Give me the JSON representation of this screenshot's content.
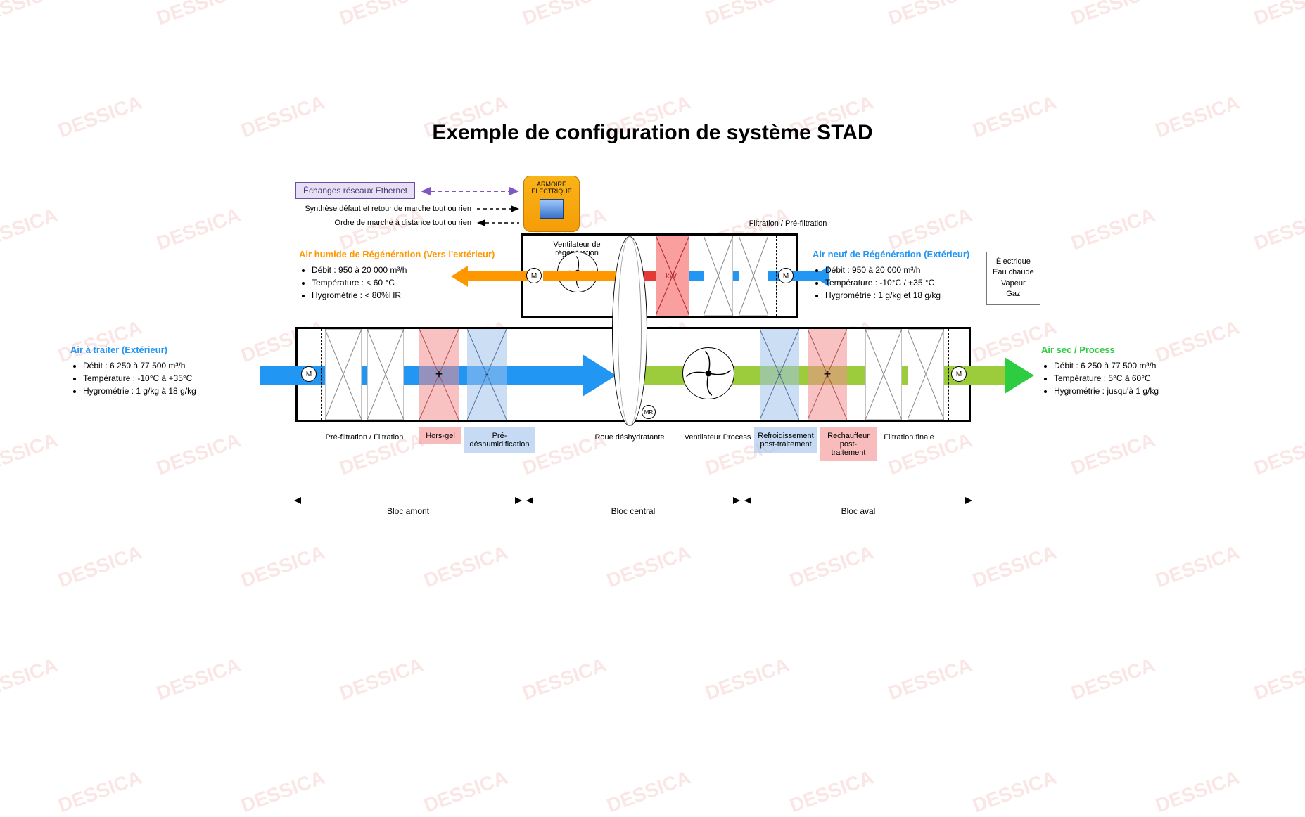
{
  "watermark_text": "DESSICA",
  "title": "Exemple de configuration de système STAD",
  "colors": {
    "blue": "#2196f3",
    "green": "#2ecc40",
    "green_flow": "#9ccc3c",
    "orange": "#ff9800",
    "purple": "#7e57c2",
    "red": "#e53935",
    "filter_line": "#888888",
    "heat_fill": "rgba(244,143,143,0.55)",
    "cool_fill": "rgba(160,195,235,0.55)"
  },
  "ethernet_label": "Échanges réseaux Ethernet",
  "control_lines": {
    "line1": "Synthèse défaut et retour de marche tout ou rien",
    "line2": "Ordre de marche à distance tout ou rien"
  },
  "cabinet": {
    "line1": "ARMOIRE",
    "line2": "ELECTRIQUE"
  },
  "heat_sources": [
    "Électrique",
    "Eau chaude",
    "Vapeur",
    "Gaz"
  ],
  "regen_top_labels": {
    "fan": "Ventilateur de régénération",
    "filtration": "Filtration /  Pré-filtration"
  },
  "air_in": {
    "header": "Air à traiter (Extérieur)",
    "specs": [
      "Débit : 6 250 à 77 500 m³/h",
      "Température : -10°C à +35°C",
      "Hygrométrie : 1 g/kg à 18 g/kg"
    ]
  },
  "air_out": {
    "header": "Air sec / Process",
    "specs": [
      "Débit : 6 250 à 77 500 m³/h",
      "Température : 5°C à 60°C",
      "Hygrométrie : jusqu'à 1 g/kg"
    ]
  },
  "regen_out": {
    "header": "Air humide de Régénération (Vers l'extérieur)",
    "specs": [
      "Débit : 950 à 20 000 m³/h",
      "Température : < 60 °C",
      "Hygrométrie : < 80%HR"
    ]
  },
  "regen_in": {
    "header": "Air neuf de Régénération (Extérieur)",
    "specs": [
      "Débit : 950 à 20 000 m³/h",
      "Température : -10°C / +35 °C",
      "Hygrométrie : 1 g/kg et 18 g/kg"
    ]
  },
  "heater_kw": "kW",
  "motor_label": "M",
  "wheel_label": "MR",
  "bottom_labels": {
    "prefilter": "Pré-filtration / Filtration",
    "horsgel": "Hors-gel",
    "predeshum": "Pré-déshumidification",
    "wheel": "Roue déshydratante",
    "fan": "Ventilateur Process",
    "postcool": "Refroidissement post-traitement",
    "postheat": "Rechauffeur post-traitement",
    "finalfilter": "Filtration finale"
  },
  "blocs": {
    "amont": "Bloc amont",
    "central": "Bloc central",
    "aval": "Bloc aval"
  }
}
